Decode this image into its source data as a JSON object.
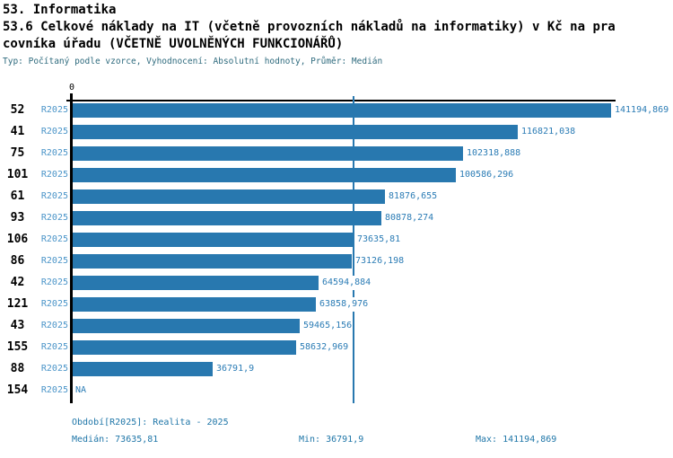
{
  "header": {
    "section_title": "53. Informatika",
    "title_line1": "53.6 Celkové náklady na IT (včetně provozních nákladů na informatiky) v Kč na pra",
    "title_line2": "covníka úřadu (VČETNĚ UVOLNĚNÝCH FUNKCIONÁŘŮ)",
    "subtitle": "Typ: Počítaný podle vzorce, Vyhodnocení: Absolutní hodnoty, Průměr: Medián"
  },
  "chart_data": {
    "type": "bar",
    "orientation": "horizontal",
    "title": "53.6 Celkové náklady na IT (včetně provozních nákladů na informatiky) v Kč na pracovníka úřadu (VČETNĚ UVOLNĚNÝCH FUNKCIONÁŘŮ)",
    "period_label": "R2025",
    "axis": {
      "zero_tick_label": "0",
      "min_value": 0,
      "max_value": 141194.869,
      "grid": false
    },
    "median_value": 73635.81,
    "rows": [
      {
        "id": "52",
        "value": 141194.869,
        "label": "141194,869"
      },
      {
        "id": "41",
        "value": 116821.038,
        "label": "116821,038"
      },
      {
        "id": "75",
        "value": 102318.888,
        "label": "102318,888"
      },
      {
        "id": "101",
        "value": 100586.296,
        "label": "100586,296"
      },
      {
        "id": "61",
        "value": 81876.655,
        "label": "81876,655"
      },
      {
        "id": "93",
        "value": 80878.274,
        "label": "80878,274"
      },
      {
        "id": "106",
        "value": 73635.81,
        "label": "73635,81"
      },
      {
        "id": "86",
        "value": 73126.198,
        "label": "73126,198"
      },
      {
        "id": "42",
        "value": 64594.884,
        "label": "64594,884"
      },
      {
        "id": "121",
        "value": 63858.976,
        "label": "63858,976"
      },
      {
        "id": "43",
        "value": 59465.156,
        "label": "59465,156"
      },
      {
        "id": "155",
        "value": 58632.969,
        "label": "58632,969"
      },
      {
        "id": "88",
        "value": 36791.9,
        "label": "36791,9"
      },
      {
        "id": "154",
        "value": null,
        "label": "NA"
      }
    ],
    "colors": {
      "bar": "#2878af",
      "median_line": "#2878af",
      "value_label": "#2b7cb5",
      "period_label": "#4a94c8",
      "row_id": "#000000",
      "axis": "#000000",
      "subtitle": "#2f6b7e",
      "footer": "#1f76a8"
    }
  },
  "footer": {
    "period": "Období[R2025]: Realita - 2025",
    "median": "Medián: 73635,81",
    "min": "Min: 36791,9",
    "max": "Max: 141194,869"
  }
}
